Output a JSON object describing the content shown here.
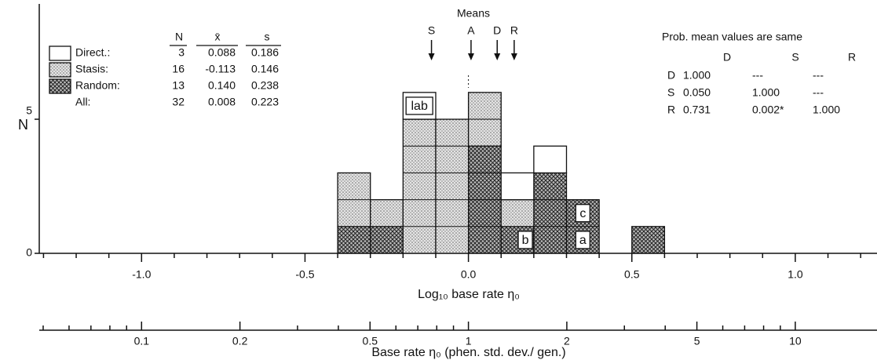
{
  "chart_data": {
    "type": "histogram",
    "xlabel": "Log₁₀ base rate η₀",
    "ylabel": "N",
    "x2label": "Base rate η₀ (phen. std. dev./ gen.)",
    "bins": [
      -0.4,
      -0.3,
      -0.2,
      -0.1,
      0.0,
      0.1,
      0.2,
      0.3,
      0.4,
      0.5,
      0.6
    ],
    "series": [
      {
        "name": "Random:",
        "pattern": "cross",
        "values": [
          1,
          1,
          0,
          0,
          4,
          1,
          3,
          2,
          0,
          1
        ]
      },
      {
        "name": "Stasis:",
        "pattern": "dots",
        "values": [
          2,
          1,
          5,
          5,
          2,
          1,
          0,
          0,
          0,
          0
        ]
      },
      {
        "name": "Direct.:",
        "pattern": "open",
        "values": [
          0,
          0,
          1,
          0,
          0,
          1,
          1,
          0,
          0,
          0
        ]
      }
    ],
    "xlim": [
      -1.313,
      1.25
    ],
    "xticks": [
      {
        "value": -1,
        "label": "-1.0"
      },
      -0.5,
      {
        "value": 0,
        "label": "0.0"
      },
      0.5,
      {
        "value": 1,
        "label": "1.0"
      }
    ],
    "xminorticks": [
      -1.3,
      -1.2,
      -1.1,
      -0.9,
      -0.8,
      -0.7,
      -0.6,
      -0.4,
      -0.3,
      -0.2,
      -0.1,
      0.1,
      0.2,
      0.3,
      0.4,
      0.6,
      0.7,
      0.8,
      0.9,
      1.1,
      1.2
    ],
    "x2ticks": [
      0.1,
      0.2,
      0.5,
      1,
      2,
      5,
      10
    ],
    "x2minorticks": [
      0.05,
      0.06,
      0.07,
      0.08,
      0.09,
      0.3,
      0.4,
      0.6,
      0.7,
      0.8,
      0.9,
      3,
      4,
      6,
      7,
      8,
      9
    ],
    "ylim": [
      0,
      9.3
    ],
    "yticks": [
      0,
      5
    ],
    "annotations": [
      "lab",
      "b",
      "a",
      "c"
    ],
    "means_title": "Means",
    "mean_arrows": [
      "S",
      "A",
      "D",
      "R"
    ],
    "stats": {
      "columns": [
        "N",
        "x̄",
        "s"
      ],
      "rows": [
        {
          "name": "Direct.:",
          "n": 3,
          "mean": 0.088,
          "s": 0.186
        },
        {
          "name": "Stasis:",
          "n": 16,
          "mean": -0.113,
          "s": 0.146
        },
        {
          "name": "Random:",
          "n": 13,
          "mean": {
            "value": 0.14,
            "label": "0.140"
          },
          "s": 0.238
        },
        {
          "name": "All:",
          "n": 32,
          "mean": 0.008,
          "s": 0.223
        }
      ]
    },
    "prob_table": {
      "title": "Prob. mean values are same",
      "columns": [
        "D",
        "S",
        "R"
      ],
      "rows": [
        [
          "D",
          "1.000",
          "---",
          "---"
        ],
        [
          "S",
          "0.050",
          "1.000",
          "---"
        ],
        [
          "R",
          "0.731",
          "0.002*",
          "1.000"
        ]
      ]
    }
  }
}
